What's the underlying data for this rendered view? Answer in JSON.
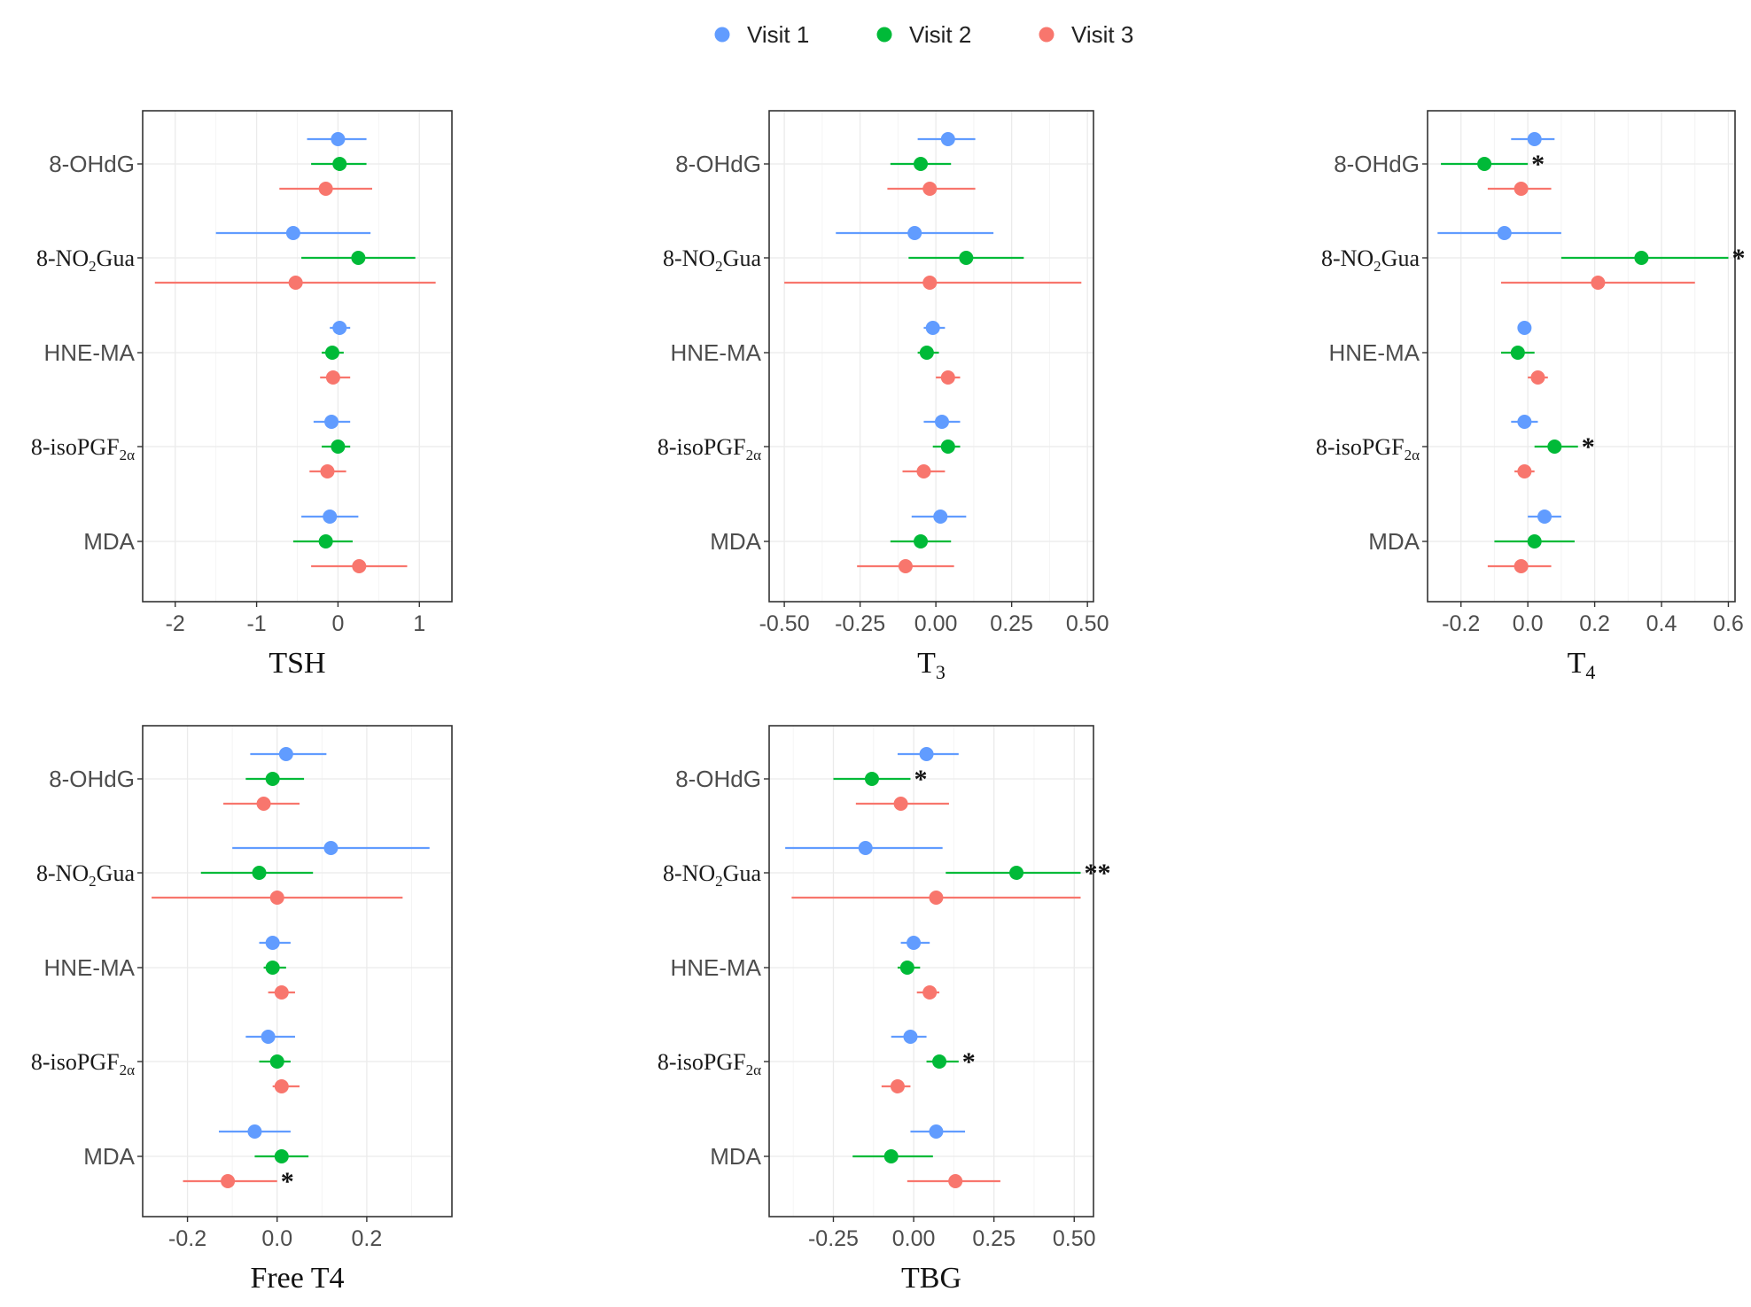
{
  "legend": {
    "items": [
      {
        "name": "Visit 1",
        "color": "#619cff"
      },
      {
        "name": "Visit 2",
        "color": "#00ba38"
      },
      {
        "name": "Visit 3",
        "color": "#f8766d"
      }
    ]
  },
  "categories": [
    "8-OHdG",
    "8-NO2Gua",
    "HNE-MA",
    "8-isoPGF2α",
    "MDA"
  ],
  "chart_data": [
    {
      "type": "scatter",
      "subtype": "forest",
      "title": "",
      "xlabel": "TSH",
      "xlim": [
        -2.4,
        1.4
      ],
      "xticks": [
        -2,
        -1,
        0,
        1
      ],
      "xtick_labels": [
        "-2",
        "-1",
        "0",
        "1"
      ],
      "categories": [
        "8-OHdG",
        "8-NO2Gua",
        "HNE-MA",
        "8-isoPGF2α",
        "MDA"
      ],
      "series": [
        {
          "name": "Visit 1",
          "estimates": [
            0.0,
            -0.55,
            0.02,
            -0.08,
            -0.1
          ],
          "lower": [
            -0.38,
            -1.5,
            -0.1,
            -0.3,
            -0.45
          ],
          "upper": [
            0.35,
            0.4,
            0.15,
            0.15,
            0.25
          ],
          "stars": [
            "",
            "",
            "",
            "",
            ""
          ]
        },
        {
          "name": "Visit 2",
          "estimates": [
            0.02,
            0.25,
            -0.07,
            0.0,
            -0.15
          ],
          "lower": [
            -0.33,
            -0.45,
            -0.2,
            -0.2,
            -0.55
          ],
          "upper": [
            0.35,
            0.95,
            0.07,
            0.15,
            0.18
          ],
          "stars": [
            "",
            "",
            "",
            "",
            ""
          ]
        },
        {
          "name": "Visit 3",
          "estimates": [
            -0.15,
            -0.52,
            -0.06,
            -0.13,
            0.26
          ],
          "lower": [
            -0.72,
            -2.25,
            -0.22,
            -0.35,
            -0.33
          ],
          "upper": [
            0.42,
            1.2,
            0.15,
            0.1,
            0.85
          ],
          "stars": [
            "",
            "",
            "",
            "",
            ""
          ]
        }
      ]
    },
    {
      "type": "scatter",
      "subtype": "forest",
      "title": "",
      "xlabel": "T3",
      "xlim": [
        -0.55,
        0.52
      ],
      "xticks": [
        -0.5,
        -0.25,
        0.0,
        0.25,
        0.5
      ],
      "xtick_labels": [
        "-0.50",
        "-0.25",
        "0.00",
        "0.25",
        "0.50"
      ],
      "categories": [
        "8-OHdG",
        "8-NO2Gua",
        "HNE-MA",
        "8-isoPGF2α",
        "MDA"
      ],
      "series": [
        {
          "name": "Visit 1",
          "estimates": [
            0.04,
            -0.07,
            -0.01,
            0.02,
            0.015
          ],
          "lower": [
            -0.06,
            -0.33,
            -0.04,
            -0.04,
            -0.08
          ],
          "upper": [
            0.13,
            0.19,
            0.03,
            0.08,
            0.1
          ],
          "stars": [
            "",
            "",
            "",
            "",
            ""
          ]
        },
        {
          "name": "Visit 2",
          "estimates": [
            -0.05,
            0.1,
            -0.03,
            0.04,
            -0.05
          ],
          "lower": [
            -0.15,
            -0.09,
            -0.06,
            -0.01,
            -0.15
          ],
          "upper": [
            0.05,
            0.29,
            0.01,
            0.08,
            0.05
          ],
          "stars": [
            "",
            "",
            "",
            "",
            ""
          ]
        },
        {
          "name": "Visit 3",
          "estimates": [
            -0.02,
            -0.02,
            0.04,
            -0.04,
            -0.1
          ],
          "lower": [
            -0.16,
            -0.5,
            0.0,
            -0.11,
            -0.26
          ],
          "upper": [
            0.13,
            0.48,
            0.08,
            0.03,
            0.06
          ],
          "stars": [
            "",
            "",
            "",
            "",
            ""
          ]
        }
      ]
    },
    {
      "type": "scatter",
      "subtype": "forest",
      "title": "",
      "xlabel": "T4",
      "xlim": [
        -0.3,
        0.62
      ],
      "xticks": [
        -0.2,
        0.0,
        0.2,
        0.4,
        0.6
      ],
      "xtick_labels": [
        "-0.2",
        "0.0",
        "0.2",
        "0.4",
        "0.6"
      ],
      "categories": [
        "8-OHdG",
        "8-NO2Gua",
        "HNE-MA",
        "8-isoPGF2α",
        "MDA"
      ],
      "series": [
        {
          "name": "Visit 1",
          "estimates": [
            0.02,
            -0.07,
            -0.01,
            -0.01,
            0.05
          ],
          "lower": [
            -0.05,
            -0.27,
            -0.03,
            -0.05,
            0.0
          ],
          "upper": [
            0.08,
            0.1,
            0.01,
            0.03,
            0.1
          ],
          "stars": [
            "",
            "",
            "",
            "",
            ""
          ]
        },
        {
          "name": "Visit 2",
          "estimates": [
            -0.13,
            0.34,
            -0.03,
            0.08,
            0.02
          ],
          "lower": [
            -0.26,
            0.1,
            -0.08,
            0.02,
            -0.1
          ],
          "upper": [
            0.0,
            0.6,
            0.02,
            0.15,
            0.14
          ],
          "stars": [
            "*",
            "*",
            "",
            "*",
            ""
          ]
        },
        {
          "name": "Visit 3",
          "estimates": [
            -0.02,
            0.21,
            0.03,
            -0.01,
            -0.02
          ],
          "lower": [
            -0.12,
            -0.08,
            0.0,
            -0.04,
            -0.12
          ],
          "upper": [
            0.07,
            0.5,
            0.06,
            0.02,
            0.07
          ],
          "stars": [
            "",
            "",
            "",
            "",
            ""
          ]
        }
      ]
    },
    {
      "type": "scatter",
      "subtype": "forest",
      "title": "",
      "xlabel": "Free T4",
      "xlim": [
        -0.3,
        0.39
      ],
      "xticks": [
        -0.2,
        0.0,
        0.2
      ],
      "xtick_labels": [
        "-0.2",
        "0.0",
        "0.2"
      ],
      "categories": [
        "8-OHdG",
        "8-NO2Gua",
        "HNE-MA",
        "8-isoPGF2α",
        "MDA"
      ],
      "series": [
        {
          "name": "Visit 1",
          "estimates": [
            0.02,
            0.12,
            -0.01,
            -0.02,
            -0.05
          ],
          "lower": [
            -0.06,
            -0.1,
            -0.04,
            -0.07,
            -0.13
          ],
          "upper": [
            0.11,
            0.34,
            0.03,
            0.04,
            0.03
          ],
          "stars": [
            "",
            "",
            "",
            "",
            ""
          ]
        },
        {
          "name": "Visit 2",
          "estimates": [
            -0.01,
            -0.04,
            -0.01,
            0.0,
            0.01
          ],
          "lower": [
            -0.07,
            -0.17,
            -0.03,
            -0.04,
            -0.05
          ],
          "upper": [
            0.06,
            0.08,
            0.02,
            0.03,
            0.07
          ],
          "stars": [
            "",
            "",
            "",
            "",
            ""
          ]
        },
        {
          "name": "Visit 3",
          "estimates": [
            -0.03,
            0.0,
            0.01,
            0.01,
            -0.11
          ],
          "lower": [
            -0.12,
            -0.28,
            -0.02,
            -0.01,
            -0.21
          ],
          "upper": [
            0.05,
            0.28,
            0.04,
            0.05,
            0.0
          ],
          "stars": [
            "",
            "",
            "",
            "",
            "*"
          ]
        }
      ]
    },
    {
      "type": "scatter",
      "subtype": "forest",
      "title": "",
      "xlabel": "TBG",
      "xlim": [
        -0.45,
        0.56
      ],
      "xticks": [
        -0.25,
        0.0,
        0.25,
        0.5
      ],
      "xtick_labels": [
        "-0.25",
        "0.00",
        "0.25",
        "0.50"
      ],
      "categories": [
        "8-OHdG",
        "8-NO2Gua",
        "HNE-MA",
        "8-isoPGF2α",
        "MDA"
      ],
      "series": [
        {
          "name": "Visit 1",
          "estimates": [
            0.04,
            -0.15,
            0.0,
            -0.01,
            0.07
          ],
          "lower": [
            -0.05,
            -0.4,
            -0.04,
            -0.07,
            -0.01
          ],
          "upper": [
            0.14,
            0.09,
            0.05,
            0.04,
            0.16
          ],
          "stars": [
            "",
            "",
            "",
            "",
            ""
          ]
        },
        {
          "name": "Visit 2",
          "estimates": [
            -0.13,
            0.32,
            -0.02,
            0.08,
            -0.07
          ],
          "lower": [
            -0.25,
            0.1,
            -0.05,
            0.04,
            -0.19
          ],
          "upper": [
            -0.01,
            0.52,
            0.02,
            0.14,
            0.06
          ],
          "stars": [
            "*",
            "**",
            "",
            "*",
            ""
          ]
        },
        {
          "name": "Visit 3",
          "estimates": [
            -0.04,
            0.07,
            0.05,
            -0.05,
            0.13
          ],
          "lower": [
            -0.18,
            -0.38,
            0.01,
            -0.1,
            -0.02
          ],
          "upper": [
            0.11,
            0.52,
            0.08,
            -0.01,
            0.27
          ],
          "stars": [
            "",
            "",
            "",
            "",
            ""
          ]
        }
      ]
    }
  ]
}
